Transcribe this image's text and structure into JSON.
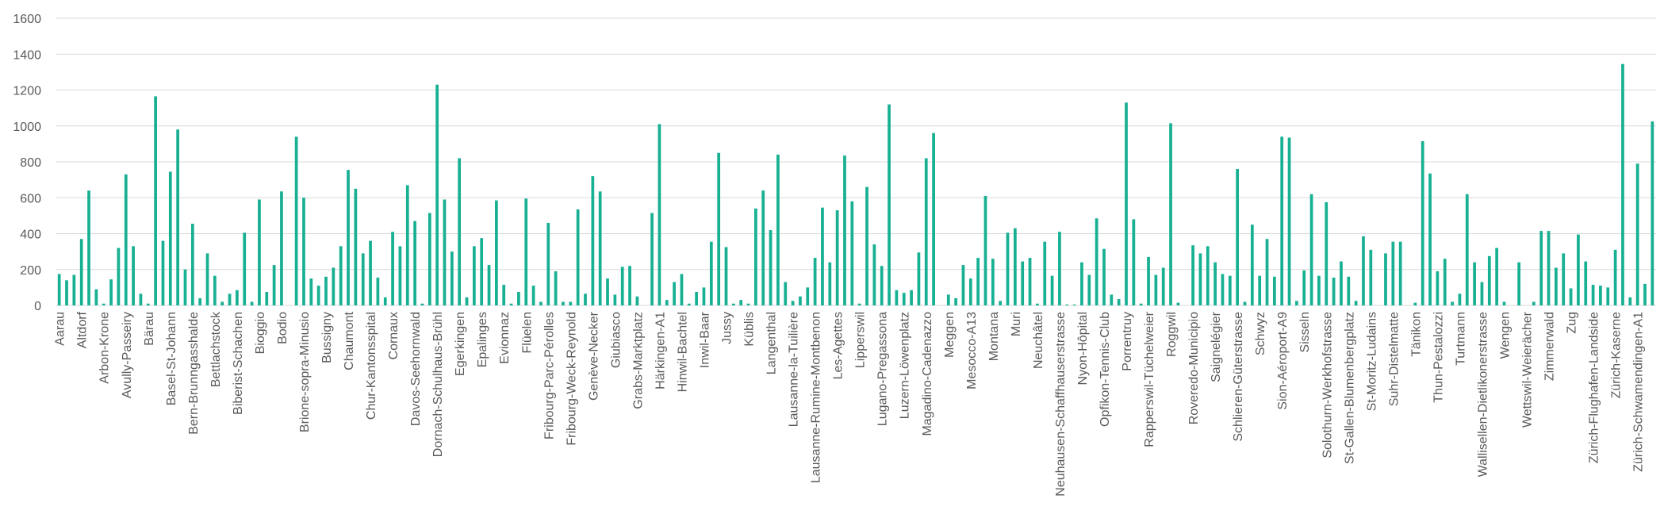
{
  "chart_data": {
    "type": "bar",
    "color": "#17b093",
    "grid": true,
    "ylim": [
      0,
      1600
    ],
    "yticks": [
      0,
      200,
      400,
      600,
      800,
      1000,
      1200,
      1400,
      1600
    ],
    "categories": [
      "Aarau",
      null,
      null,
      "Altdorf",
      null,
      null,
      "Arbon-Krone",
      null,
      null,
      "Avully-Passeiry",
      null,
      null,
      "Bärau",
      null,
      null,
      "Basel-St-Johann",
      null,
      null,
      "Bern-Brunngasshalde",
      null,
      null,
      "Bettlachstock",
      null,
      null,
      "Biberist-Schachen",
      null,
      null,
      "Bioggio",
      null,
      null,
      "Bodio",
      null,
      null,
      "Brione-sopra-Minusio",
      null,
      null,
      "Bussigny",
      null,
      null,
      "Chaumont",
      null,
      null,
      "Chur-Kantonsspital",
      null,
      null,
      "Cornaux",
      null,
      null,
      "Davos-Seehornwald",
      null,
      null,
      "Dornach-Schulhaus-Brühl",
      null,
      null,
      "Egerkingen",
      null,
      null,
      "Epalinges",
      null,
      null,
      "Evionnaz",
      null,
      null,
      "Flüelen",
      null,
      null,
      "Fribourg-Parc-Pérolles",
      null,
      null,
      "Fribourg-Weck-Reynold",
      null,
      null,
      "Genève-Necker",
      null,
      null,
      "Giubiasco",
      null,
      null,
      "Grabs-Marktplatz",
      null,
      null,
      "Härkingen-A1",
      null,
      null,
      "Hinwil-Bachtel",
      null,
      null,
      "Inwil-Baar",
      null,
      null,
      "Jussy",
      null,
      null,
      "Küblis",
      null,
      null,
      "Langenthal",
      null,
      null,
      "Lausanne-la-Tuilière",
      null,
      null,
      "Lausanne-Rumine-Montbenon",
      null,
      null,
      "Les-Agettes",
      null,
      null,
      "Lipperswil",
      null,
      null,
      "Lugano-Pregassona",
      null,
      null,
      "Luzern-Löwenplatz",
      null,
      null,
      "Magadino-Cadenazzo",
      null,
      null,
      "Meggen",
      null,
      null,
      "Mesocco-A13",
      null,
      null,
      "Montana",
      null,
      null,
      "Muri",
      null,
      null,
      "Neuchâtel",
      null,
      null,
      "Neuhausen-Schaffhauserstrasse",
      null,
      null,
      "Nyon-Hôpital",
      null,
      null,
      "Opfikon-Tennis-Club",
      null,
      null,
      "Porrentruy",
      null,
      null,
      "Rapperswil-Tüchelweier",
      null,
      null,
      "Roggwil",
      null,
      null,
      "Roveredo-Municipio",
      null,
      null,
      "Saignelégier",
      null,
      null,
      "Schlieren-Güterstrasse",
      null,
      null,
      "Schwyz",
      null,
      null,
      "Sion-Aéroport-A9",
      null,
      null,
      "Sisseln",
      null,
      null,
      "Solothurn-Werkhofstrasse",
      null,
      null,
      "St-Gallen-Blumenbergplatz",
      null,
      null,
      "St-Moritz-Ludains",
      null,
      null,
      "Suhr-Distelmatte",
      null,
      null,
      "Tänikon",
      null,
      null,
      "Thun-Pestalozzi",
      null,
      null,
      "Turtmann",
      null,
      null,
      "Wallisellen-Dietlikonerstrasse",
      null,
      null,
      "Wengen",
      null,
      null,
      "Wettswil-Weierächer",
      null,
      null,
      "Zimmerwald",
      null,
      null,
      "Zug",
      null,
      null,
      "Zürich-Flughafen-Landside",
      null,
      null,
      "Zürich-Kaserne",
      null,
      null,
      "Zürich-Schwamendingen-A1",
      null,
      null
    ],
    "values": [
      175,
      140,
      170,
      370,
      640,
      90,
      10,
      145,
      320,
      730,
      330,
      65,
      10,
      1165,
      360,
      745,
      980,
      200,
      455,
      40,
      290,
      165,
      20,
      65,
      85,
      405,
      20,
      590,
      75,
      225,
      635,
      0,
      940,
      600,
      150,
      110,
      160,
      210,
      330,
      755,
      650,
      290,
      360,
      155,
      45,
      410,
      330,
      670,
      470,
      10,
      515,
      1230,
      590,
      300,
      820,
      45,
      330,
      375,
      225,
      585,
      115,
      10,
      75,
      595,
      110,
      20,
      460,
      190,
      20,
      20,
      535,
      65,
      720,
      635,
      150,
      60,
      215,
      220,
      50,
      0,
      515,
      1010,
      30,
      130,
      175,
      10,
      75,
      100,
      355,
      850,
      325,
      10,
      30,
      10,
      540,
      640,
      420,
      840,
      130,
      25,
      50,
      100,
      265,
      545,
      240,
      530,
      835,
      580,
      10,
      660,
      340,
      220,
      1120,
      85,
      70,
      85,
      295,
      820,
      960,
      0,
      60,
      40,
      225,
      150,
      265,
      610,
      260,
      25,
      405,
      430,
      245,
      265,
      10,
      355,
      165,
      410,
      5,
      5,
      240,
      170,
      485,
      315,
      60,
      35,
      1130,
      480,
      10,
      270,
      170,
      210,
      1015,
      15,
      0,
      335,
      290,
      330,
      240,
      175,
      165,
      760,
      20,
      450,
      165,
      370,
      160,
      940,
      935,
      25,
      195,
      620,
      165,
      575,
      155,
      245,
      160,
      25,
      385,
      310,
      0,
      290,
      355,
      355,
      0,
      15,
      915,
      735,
      190,
      260,
      20,
      65,
      620,
      240,
      130,
      275,
      320,
      20,
      0,
      240,
      0,
      20,
      415,
      415,
      210,
      290,
      95,
      395,
      245,
      115,
      110,
      100,
      310,
      1345,
      45,
      790,
      120,
      1025
    ]
  }
}
